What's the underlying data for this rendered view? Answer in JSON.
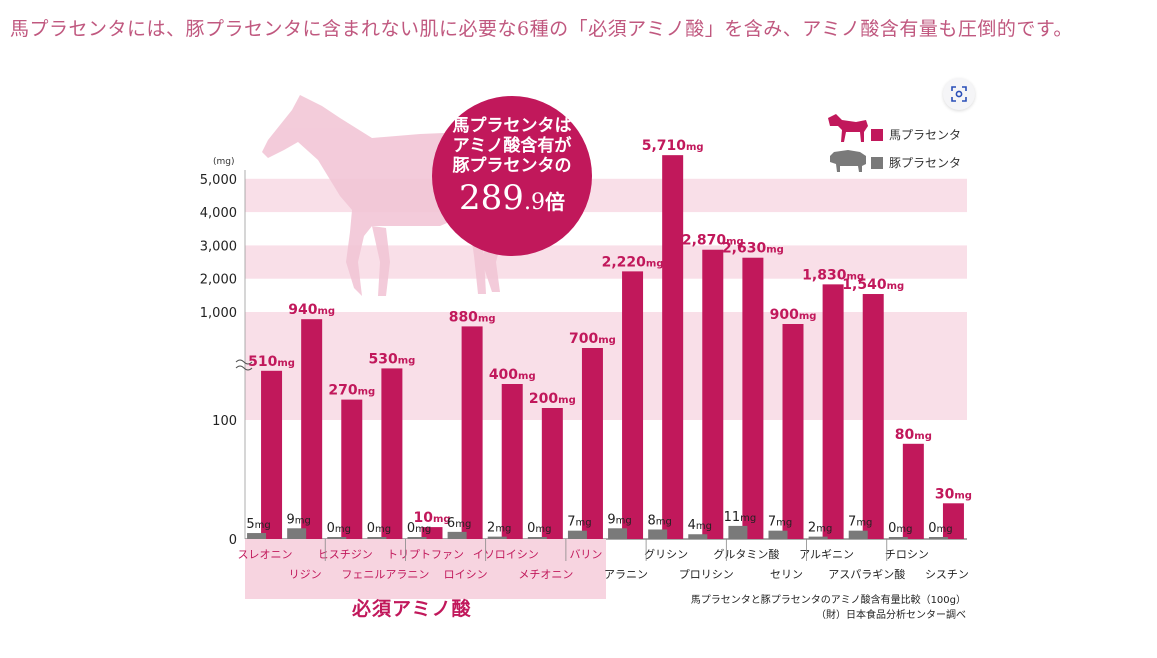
{
  "headline": "馬プラセンタには、豚プラセンタに含まれない肌に必要な6種の「必須アミノ酸」を含み、アミノ酸含有量も圧倒的です。",
  "callout": {
    "line1": "馬プラセンタは",
    "line2": "アミノ酸含有が",
    "line3": "豚プラセンタの",
    "multiplier_int": "289",
    "multiplier_dec": ".9",
    "multiplier_suffix": "倍"
  },
  "essential_group_label": "必須アミノ酸",
  "source_note": {
    "line1": "馬プラセンタと豚プラセンタのアミノ酸含有量比較（100g）",
    "line2": "（財）日本食品分析センター調べ"
  },
  "icons": {
    "expand": "expand-view-icon",
    "horse": "horse-silhouette-icon",
    "pig": "pig-silhouette-icon"
  },
  "colors": {
    "horse_bar": "#c1185b",
    "pig_bar": "#7a7a7a",
    "band": "#f9dfe8",
    "essential_label_bg": "#f7d4e0",
    "label_text": "#c1185b"
  },
  "chart_data": {
    "type": "bar",
    "title": "",
    "y_unit": "(mg)",
    "y_scale": "broken",
    "y_ticks": [
      "0",
      "100",
      "1,000",
      "2,000",
      "3,000",
      "4,000",
      "5,000"
    ],
    "value_unit": "mg",
    "legend_position": "top-right",
    "categories": [
      "スレオニン",
      "リジン",
      "ヒスチジン",
      "フェニルアラニン",
      "トリプトファン",
      "ロイシン",
      "イソロイシン",
      "メチオニン",
      "バリン",
      "アラニン",
      "グリシン",
      "プロリシン",
      "グルタミン酸",
      "セリン",
      "アルギニン",
      "アスパラギン酸",
      "チロシン",
      "シスチン"
    ],
    "label_row": [
      0,
      1,
      0,
      1,
      0,
      1,
      0,
      1,
      0,
      1,
      0,
      1,
      0,
      1,
      0,
      1,
      0,
      1
    ],
    "essential_count": 9,
    "series": [
      {
        "name": "馬プラセンタ",
        "values": [
          510,
          940,
          270,
          530,
          10,
          880,
          400,
          200,
          700,
          2220,
          5710,
          2870,
          2630,
          900,
          1830,
          1540,
          80,
          30
        ],
        "labels": [
          "510",
          "940",
          "270",
          "530",
          "10",
          "880",
          "400",
          "200",
          "700",
          "2,220",
          "5,710",
          "2,870",
          "2,630",
          "900",
          "1,830",
          "1,540",
          "80",
          "30"
        ]
      },
      {
        "name": "豚プラセンタ",
        "values": [
          5,
          9,
          0,
          0,
          0,
          6,
          2,
          0,
          7,
          9,
          8,
          4,
          11,
          7,
          2,
          7,
          0,
          0
        ],
        "labels": [
          "5",
          "9",
          "0",
          "0",
          "0",
          "6",
          "2",
          "0",
          "7",
          "9",
          "8",
          "4",
          "11",
          "7",
          "2",
          "7",
          "0",
          "0"
        ]
      }
    ]
  }
}
